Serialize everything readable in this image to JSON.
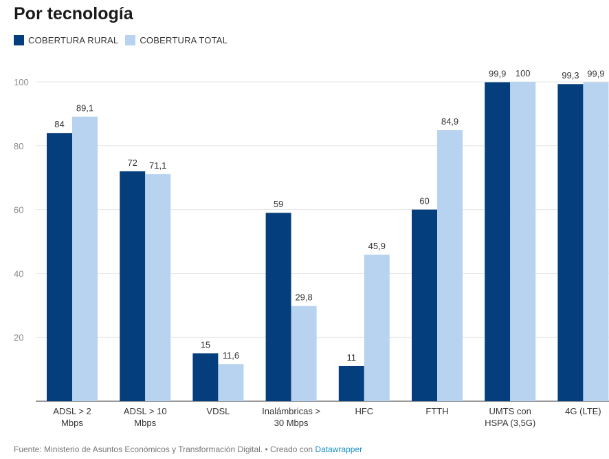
{
  "title": "Por tecnología",
  "legend": [
    {
      "label": "COBERTURA RURAL",
      "color": "#053e7c"
    },
    {
      "label": "COBERTURA TOTAL",
      "color": "#b8d3ef"
    }
  ],
  "footer": {
    "source_text": "Fuente: Ministerio de Asuntos Económicos y Transformación Digital. • Creado con ",
    "link_text": "Datawrapper"
  },
  "chart_data": {
    "type": "bar",
    "title": "Por tecnología",
    "xlabel": "",
    "ylabel": "",
    "ylim": [
      0,
      100
    ],
    "yticks": [
      "20",
      "40",
      "60",
      "80",
      "100"
    ],
    "grid": true,
    "legend_position": "top-left",
    "categories": [
      [
        "ADSL > 2",
        "Mbps"
      ],
      [
        "ADSL > 10",
        "Mbps"
      ],
      [
        "VDSL"
      ],
      [
        "Inalámbricas >",
        "30 Mbps"
      ],
      [
        "HFC"
      ],
      [
        "FTTH"
      ],
      [
        "UMTS con",
        "HSPA (3,5G)"
      ],
      [
        "4G (LTE)"
      ]
    ],
    "series": [
      {
        "name": "COBERTURA RURAL",
        "color": "#053e7c",
        "values": [
          84,
          72,
          15,
          59,
          11,
          60,
          99.9,
          99.3
        ],
        "labels": [
          "84",
          "72",
          "15",
          "59",
          "11",
          "60",
          "99,9",
          "99,3"
        ]
      },
      {
        "name": "COBERTURA TOTAL",
        "color": "#b8d3ef",
        "values": [
          89.1,
          71.1,
          11.6,
          29.8,
          45.9,
          84.9,
          100,
          99.9
        ],
        "labels": [
          "89,1",
          "71,1",
          "11,6",
          "29,8",
          "45,9",
          "84,9",
          "100",
          "99,9"
        ]
      }
    ]
  }
}
